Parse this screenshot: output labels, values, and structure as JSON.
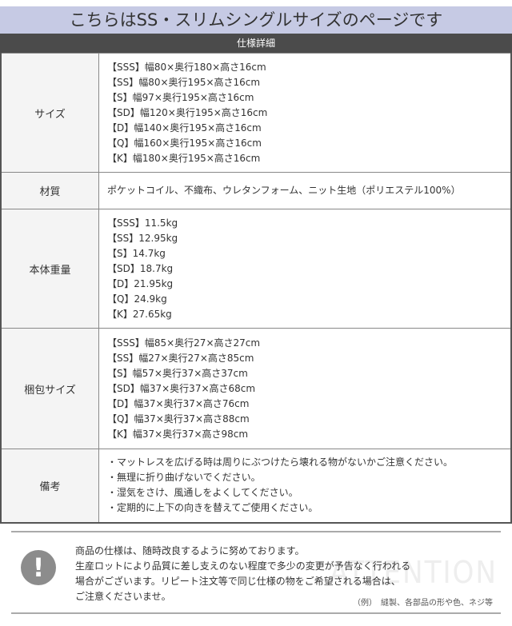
{
  "title": "こちらはSS・スリムシングルサイズのページです",
  "header": "仕様詳細",
  "rows": [
    {
      "label": "サイズ",
      "lines": [
        "【SSS】幅80×奥行180×高さ16cm",
        "【SS】幅80×奥行195×高さ16cm",
        "【S】幅97×奥行195×高さ16cm",
        "【SD】幅120×奥行195×高さ16cm",
        "【D】幅140×奥行195×高さ16cm",
        "【Q】幅160×奥行195×高さ16cm",
        "【K】幅180×奥行195×高さ16cm"
      ]
    },
    {
      "label": "材質",
      "lines": [
        "ポケットコイル、不織布、ウレタンフォーム、ニット生地（ポリエステル100%）"
      ]
    },
    {
      "label": "本体重量",
      "lines": [
        "【SSS】11.5kg",
        "【SS】12.95kg",
        "【S】14.7kg",
        "【SD】18.7kg",
        "【D】21.95kg",
        "【Q】24.9kg",
        "【K】27.65kg"
      ]
    },
    {
      "label": "梱包サイズ",
      "lines": [
        "【SSS】幅85×奥行27×高さ27cm",
        "【SS】幅27×奥行27×高さ85cm",
        "【S】幅57×奥行37×高さ37cm",
        "【SD】幅37×奥行37×高さ68cm",
        "【D】幅37×奥行37×高さ76cm",
        "【Q】幅37×奥行37×高さ88cm",
        "【K】幅37×奥行37×高さ98cm"
      ]
    },
    {
      "label": "備考",
      "lines": [
        "・マットレスを広げる時は周りにぶつけたら壊れる物がないかご注意ください。",
        "・無理に折り曲げないでください。",
        "・湿気をさけ、風通しをよくしてください。",
        "・定期的に上下の向きを替えてご使用ください。"
      ]
    }
  ],
  "notice": {
    "icon": "exclamation-icon",
    "lines": [
      "商品の仕様は、随時改良するように努めております。",
      "生産ロットにより品質に差し支えのない程度で多少の変更が予告なく行われる",
      "場合がございます。リピート注文等で同じ仕様の物をご希望される場合は、",
      "ご注意くださいませ。"
    ],
    "watermark": "ATTENTION",
    "example": "（例）　縫製、各部品の形や色、ネジ等"
  }
}
